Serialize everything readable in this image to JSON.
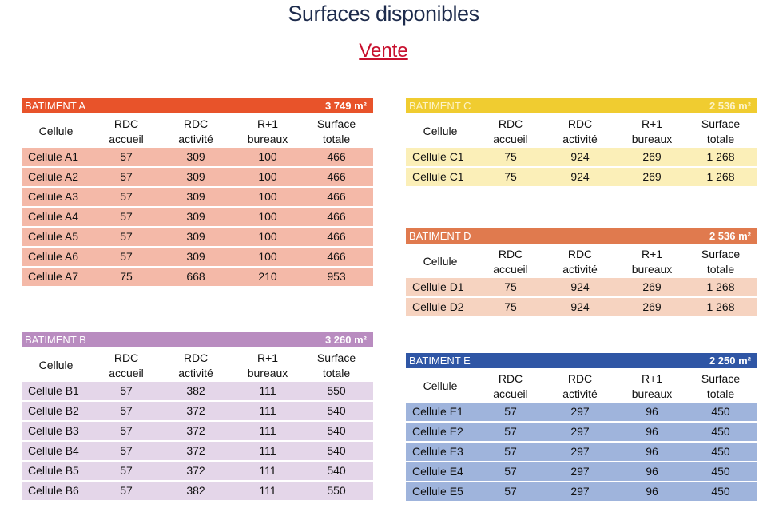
{
  "header": {
    "title": "Surfaces disponibles",
    "subtitle": "Vente"
  },
  "tables": [
    {
      "name": "BATIMENT A",
      "total": "3 749 m²",
      "columns": [
        [
          "Cellule"
        ],
        [
          "RDC",
          "accueil"
        ],
        [
          "RDC",
          "activité"
        ],
        [
          "R+1",
          "bureaux"
        ],
        [
          "Surface",
          "totale"
        ]
      ],
      "rows": [
        [
          "Cellule A1",
          "57",
          "309",
          "100",
          "466"
        ],
        [
          "Cellule A2",
          "57",
          "309",
          "100",
          "466"
        ],
        [
          "Cellule A3",
          "57",
          "309",
          "100",
          "466"
        ],
        [
          "Cellule A4",
          "57",
          "309",
          "100",
          "466"
        ],
        [
          "Cellule A5",
          "57",
          "309",
          "100",
          "466"
        ],
        [
          "Cellule A6",
          "57",
          "309",
          "100",
          "466"
        ],
        [
          "Cellule A7",
          "75",
          "668",
          "210",
          "953"
        ]
      ]
    },
    {
      "name": "BATIMENT B",
      "total": "3 260 m²",
      "columns": [
        [
          "Cellule"
        ],
        [
          "RDC",
          "accueil"
        ],
        [
          "RDC",
          "activité"
        ],
        [
          "R+1",
          "bureaux"
        ],
        [
          "Surface",
          "totale"
        ]
      ],
      "rows": [
        [
          "Cellule B1",
          "57",
          "382",
          "111",
          "550"
        ],
        [
          "Cellule B2",
          "57",
          "372",
          "111",
          "540"
        ],
        [
          "Cellule B3",
          "57",
          "372",
          "111",
          "540"
        ],
        [
          "Cellule B4",
          "57",
          "372",
          "111",
          "540"
        ],
        [
          "Cellule B5",
          "57",
          "372",
          "111",
          "540"
        ],
        [
          "Cellule B6",
          "57",
          "382",
          "111",
          "550"
        ]
      ]
    },
    {
      "name": "BATIMENT C",
      "total": "2 536 m²",
      "columns": [
        [
          "Cellule"
        ],
        [
          "RDC",
          "accueil"
        ],
        [
          "RDC",
          "activité"
        ],
        [
          "R+1",
          "bureaux"
        ],
        [
          "Surface",
          "totale"
        ]
      ],
      "rows": [
        [
          "Cellule C1",
          "75",
          "924",
          "269",
          "1 268"
        ],
        [
          "Cellule C1",
          "75",
          "924",
          "269",
          "1 268"
        ]
      ]
    },
    {
      "name": "BATIMENT D",
      "total": "2 536 m²",
      "columns": [
        [
          "Cellule"
        ],
        [
          "RDC",
          "accueil"
        ],
        [
          "RDC",
          "activité"
        ],
        [
          "R+1",
          "bureaux"
        ],
        [
          "Surface",
          "totale"
        ]
      ],
      "rows": [
        [
          "Cellule D1",
          "75",
          "924",
          "269",
          "1 268"
        ],
        [
          "Cellule D2",
          "75",
          "924",
          "269",
          "1 268"
        ]
      ]
    },
    {
      "name": "BATIMENT E",
      "total": "2 250 m²",
      "columns": [
        [
          "Cellule"
        ],
        [
          "RDC",
          "accueil"
        ],
        [
          "RDC",
          "activité"
        ],
        [
          "R+1",
          "bureaux"
        ],
        [
          "Surface",
          "totale"
        ]
      ],
      "rows": [
        [
          "Cellule E1",
          "57",
          "297",
          "96",
          "450"
        ],
        [
          "Cellule E2",
          "57",
          "297",
          "96",
          "450"
        ],
        [
          "Cellule E3",
          "57",
          "297",
          "96",
          "450"
        ],
        [
          "Cellule E4",
          "57",
          "297",
          "96",
          "450"
        ],
        [
          "Cellule E5",
          "57",
          "297",
          "96",
          "450"
        ]
      ]
    }
  ]
}
